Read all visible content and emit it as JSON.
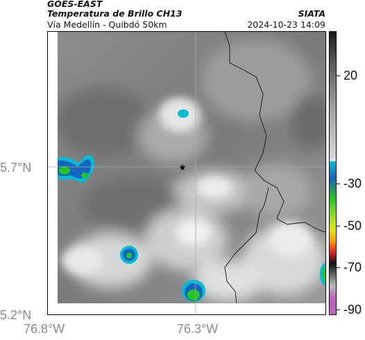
{
  "header": {
    "source": "GOES-EAST",
    "product": "Temperatura de Brillo CH13",
    "region": "Vía Medellín - Quibdó 50km",
    "organization": "SIATA",
    "timestamp": "2024-10-23 14:09"
  },
  "axes": {
    "lat_ticks": [
      "5.7°N",
      "5.2°N"
    ],
    "lon_ticks": [
      "76.8°W",
      "76.3°W"
    ]
  },
  "colorbar": {
    "labels": [
      "20",
      "-30",
      "-50",
      "-70",
      "-90"
    ],
    "palette": {
      "gray_light": "#d9d9d9",
      "gray_dark": "#555555",
      "cyan": "#00bcd4",
      "blue": "#1565c0",
      "green": "#21c821",
      "yellow": "#e6e600",
      "red": "#e02020",
      "black": "#111111",
      "magenta": "#c060c0"
    }
  },
  "marker": {
    "symbol": "★",
    "name": "reference-star"
  }
}
